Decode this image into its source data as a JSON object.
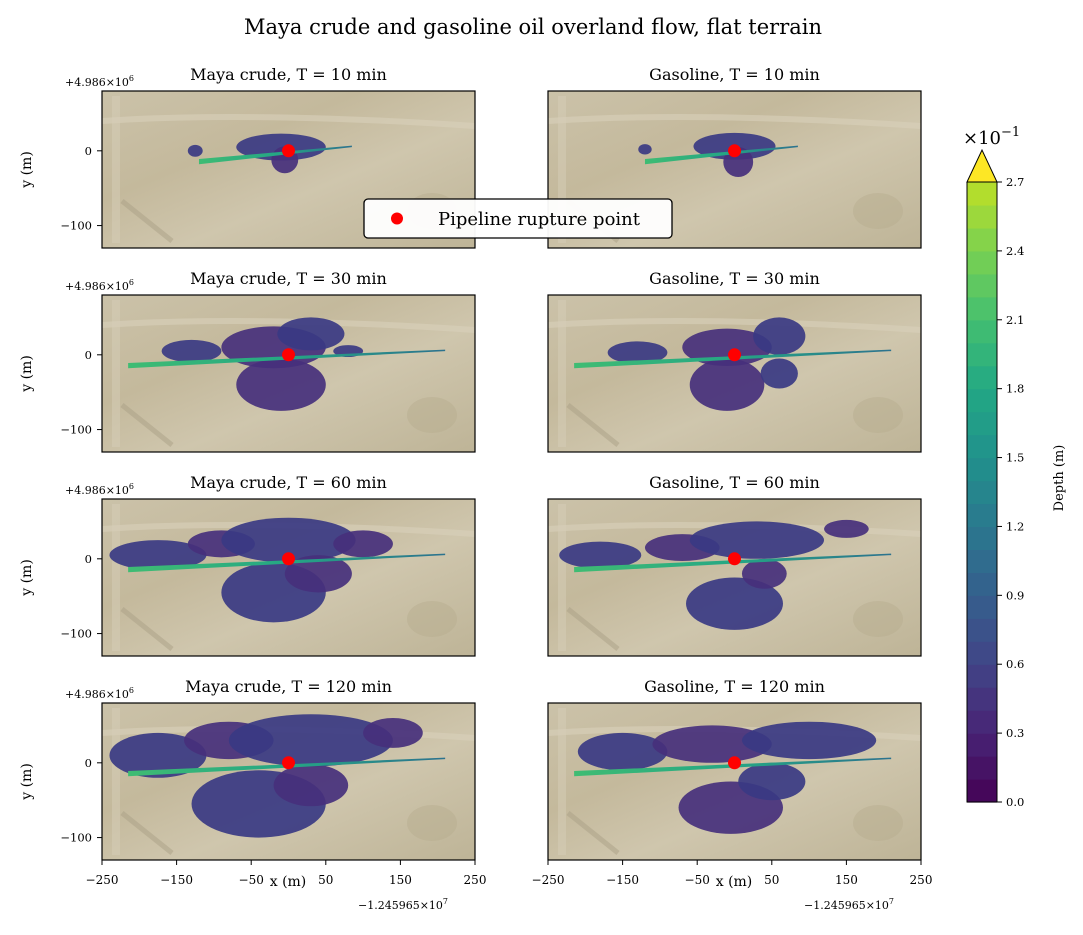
{
  "chart_data": {
    "type": "heatmap",
    "title": "Maya crude and gasoline oil overland flow, flat terrain",
    "xlabel": "x (m)",
    "ylabel": "y (m)",
    "x_offset_label": "−1.245965×10",
    "x_offset_exp": "7",
    "y_offset_label": "+4.986×10",
    "y_offset_exp": "6",
    "xlim": [
      -250,
      250
    ],
    "ylim": [
      -130,
      80
    ],
    "x_ticks": [
      -250,
      -150,
      -50,
      50,
      150,
      250
    ],
    "x_tick_labels": [
      "−250",
      "−150",
      "−50",
      "50",
      "150",
      "250"
    ],
    "y_ticks": [
      0,
      -100
    ],
    "y_tick_labels": [
      "0",
      "−100"
    ],
    "legend": {
      "label": "Pipeline rupture point",
      "color": "#ff0000",
      "placement": "center"
    },
    "rupture_point": {
      "x": 0,
      "y": 0
    },
    "panels": [
      {
        "title": "Maya crude, T = 10 min",
        "fluid": "Maya crude",
        "time_min": 10,
        "pools": [
          [
            -10,
            5,
            60,
            18
          ],
          [
            -5,
            -12,
            18,
            18
          ],
          [
            -125,
            0,
            10,
            8
          ]
        ]
      },
      {
        "title": "Gasoline, T = 10 min",
        "fluid": "Gasoline",
        "time_min": 10,
        "pools": [
          [
            0,
            6,
            55,
            18
          ],
          [
            5,
            -15,
            20,
            20
          ],
          [
            -120,
            2,
            9,
            7
          ]
        ]
      },
      {
        "title": "Maya crude, T = 30 min",
        "fluid": "Maya crude",
        "time_min": 30,
        "pools": [
          [
            -130,
            5,
            40,
            15
          ],
          [
            -20,
            10,
            70,
            28
          ],
          [
            30,
            28,
            45,
            22
          ],
          [
            -10,
            -40,
            60,
            35
          ],
          [
            80,
            5,
            20,
            8
          ]
        ]
      },
      {
        "title": "Gasoline, T = 30 min",
        "fluid": "Gasoline",
        "time_min": 30,
        "pools": [
          [
            -130,
            3,
            40,
            15
          ],
          [
            -10,
            10,
            60,
            25
          ],
          [
            60,
            25,
            35,
            25
          ],
          [
            -10,
            -40,
            50,
            35
          ],
          [
            60,
            -25,
            25,
            20
          ]
        ]
      },
      {
        "title": "Maya crude, T = 60 min",
        "fluid": "Maya crude",
        "time_min": 60,
        "pools": [
          [
            -175,
            5,
            65,
            20
          ],
          [
            -90,
            20,
            45,
            18
          ],
          [
            0,
            25,
            90,
            30
          ],
          [
            100,
            20,
            40,
            18
          ],
          [
            -20,
            -45,
            70,
            40
          ],
          [
            40,
            -20,
            45,
            25
          ]
        ]
      },
      {
        "title": "Gasoline, T = 60 min",
        "fluid": "Gasoline",
        "time_min": 60,
        "pools": [
          [
            -180,
            5,
            55,
            18
          ],
          [
            -70,
            15,
            50,
            18
          ],
          [
            30,
            25,
            90,
            25
          ],
          [
            150,
            40,
            30,
            12
          ],
          [
            0,
            -60,
            65,
            35
          ],
          [
            40,
            -20,
            30,
            20
          ]
        ]
      },
      {
        "title": "Maya crude, T = 120 min",
        "fluid": "Maya crude",
        "time_min": 120,
        "pools": [
          [
            -175,
            10,
            65,
            30
          ],
          [
            -80,
            30,
            60,
            25
          ],
          [
            30,
            30,
            110,
            35
          ],
          [
            140,
            40,
            40,
            20
          ],
          [
            -40,
            -55,
            90,
            45
          ],
          [
            30,
            -30,
            50,
            28
          ]
        ]
      },
      {
        "title": "Gasoline, T = 120 min",
        "fluid": "Gasoline",
        "time_min": 120,
        "pools": [
          [
            -150,
            15,
            60,
            25
          ],
          [
            -30,
            25,
            80,
            25
          ],
          [
            100,
            30,
            90,
            25
          ],
          [
            -5,
            -60,
            70,
            35
          ],
          [
            50,
            -25,
            45,
            25
          ]
        ]
      }
    ],
    "colorbar": {
      "label": "Depth (m)",
      "multiplier_base": "×10",
      "multiplier_exp": "−1",
      "ticks": [
        0.0,
        0.3,
        0.6,
        0.9,
        1.2,
        1.5,
        1.8,
        2.1,
        2.4,
        2.7
      ],
      "tick_labels": [
        "0.0",
        "0.3",
        "0.6",
        "0.9",
        "1.2",
        "1.5",
        "1.8",
        "2.1",
        "2.4",
        "2.7"
      ],
      "range": [
        0.0,
        2.7
      ],
      "extend": "max",
      "colormap": "viridis"
    }
  }
}
